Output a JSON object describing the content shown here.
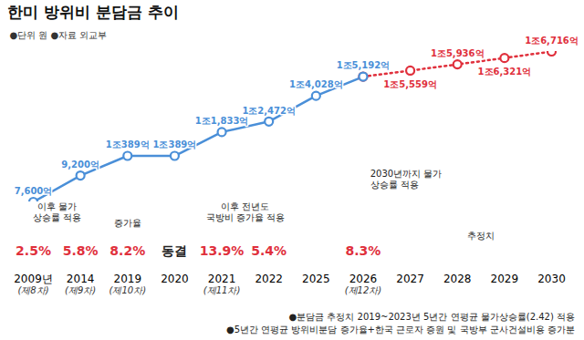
{
  "chart_data": {
    "type": "line",
    "title": "한미 방위비 분담금 추이",
    "subtitle": "●단위 원 ●자료 외교부",
    "categories": [
      "2009년",
      "2014",
      "2019",
      "2020",
      "2021",
      "2022",
      "2025",
      "2026",
      "2027",
      "2028",
      "2029",
      "2030"
    ],
    "rounds": [
      "(제8차)",
      "(제9차)",
      "(제10차)",
      null,
      "(제11차)",
      null,
      null,
      "(제12차)",
      null,
      null,
      null,
      null
    ],
    "series": [
      {
        "color": "#4a8fd8",
        "marker": "circle",
        "line_style": "solid",
        "values": [
          7600,
          9200,
          10389,
          10389,
          11833,
          12472,
          14028,
          15192,
          null,
          null,
          null,
          null
        ],
        "value_labels": [
          "7,600억",
          "9,200억",
          "1조389억",
          "1조389억",
          "1조1,833억",
          "1조2,472억",
          "1조4,028억",
          "1조5,192억",
          null,
          null,
          null,
          null
        ]
      },
      {
        "color": "#e0303c",
        "marker": "circle",
        "line_style": "dotted",
        "values": [
          null,
          null,
          null,
          null,
          null,
          null,
          null,
          15192,
          15559,
          15936,
          16321,
          16716
        ],
        "value_labels": [
          null,
          null,
          null,
          null,
          null,
          null,
          null,
          null,
          "1조5,559억",
          "1조5,936억",
          "1조6,321억",
          "1조6,716억"
        ]
      }
    ],
    "rate_labels": [
      "2.5%",
      "5.8%",
      "8.2%",
      "동결",
      "13.9%",
      "5.4%",
      null,
      "8.3%",
      null,
      null,
      null,
      null
    ],
    "annotations": [
      "이후 물가\n상승률 적용",
      "증가율",
      "이후 전년도\n국방비 증가율 적용",
      "2030년까지 물가\n상승률 적용",
      "추정치"
    ],
    "footnotes": [
      "●분담금 추정치 2019~2023년 5년간 연평균 물가상승률(2.42) 적용",
      "●5년간 연평균 방위비분담 증가율+한국 근로자 증원 및 국방부 군사건설비용 증가분"
    ],
    "data_labels": true,
    "tick_labels": "x"
  }
}
